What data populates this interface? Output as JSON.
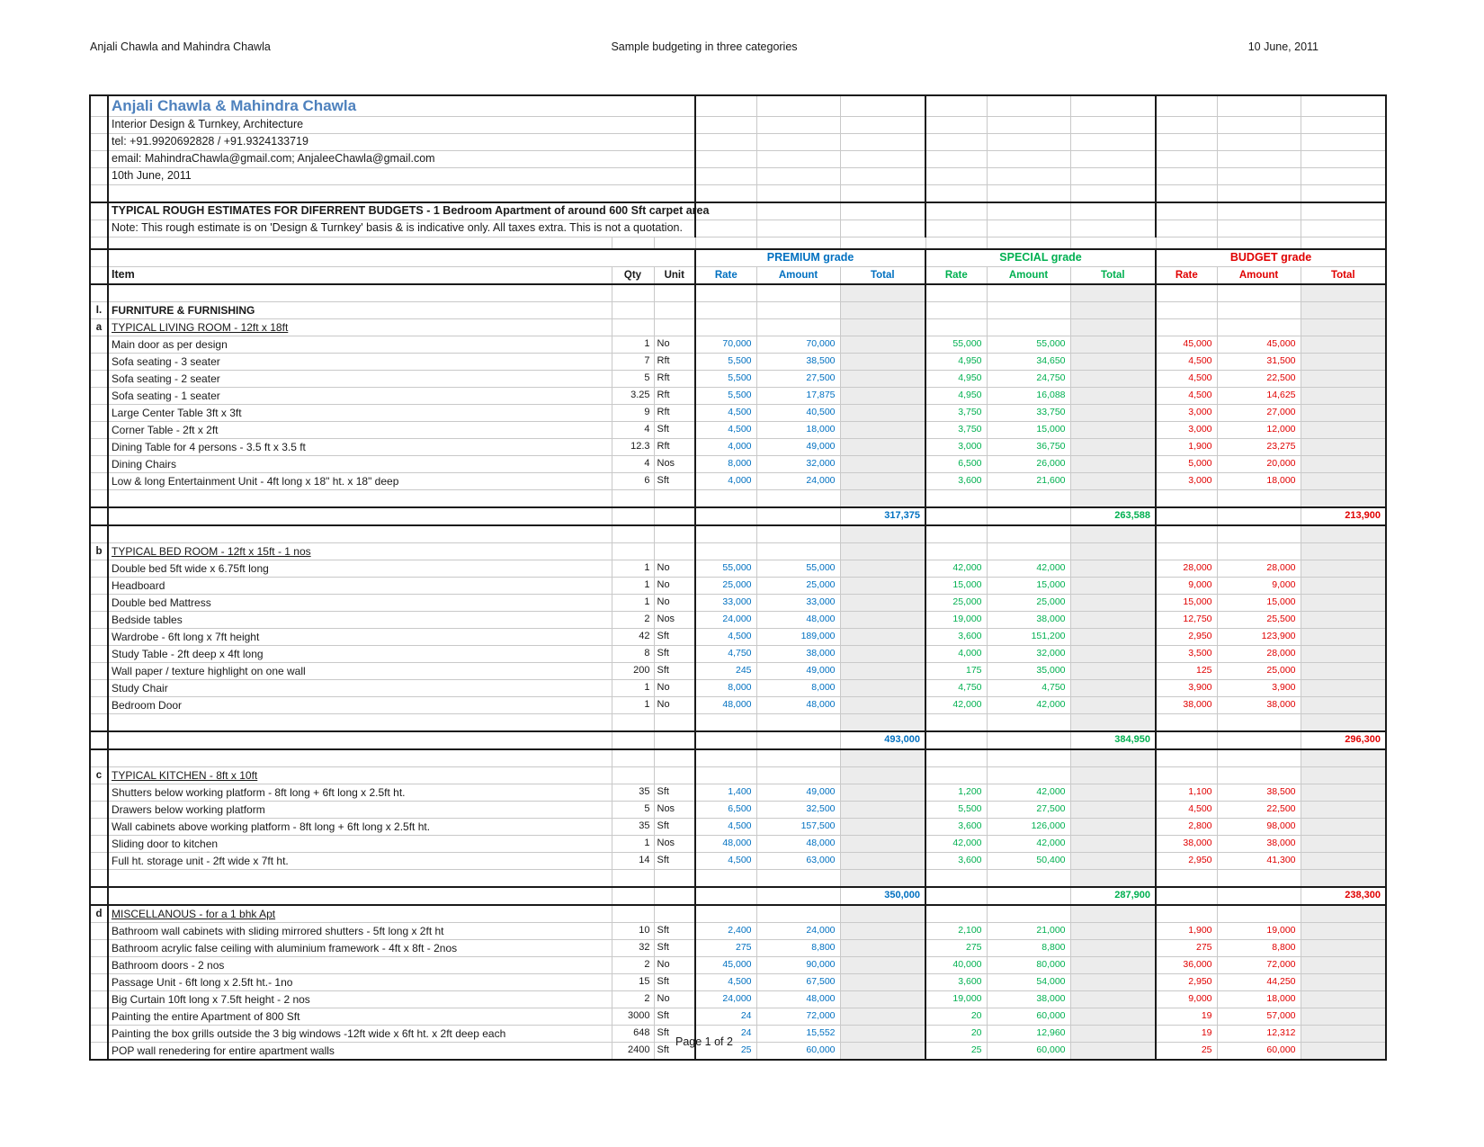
{
  "page": {
    "header_left": "Anjali Chawla and Mahindra Chawla",
    "header_center": "Sample budgeting in three categories",
    "header_right": "10 June, 2011",
    "footer": "Page 1 of 2"
  },
  "company": {
    "name": "Anjali Chawla & Mahindra Chawla",
    "tagline": "Interior Design & Turnkey, Architecture",
    "tel": "tel: +91.9920692828 / +91.9324133719",
    "email": "email: MahindraChawla@gmail.com; AnjaleeChawla@gmail.com",
    "date": "10th June, 2011",
    "estimate_title": "TYPICAL ROUGH  ESTIMATES FOR DIFERRENT BUDGETS - 1 Bedroom Apartment of around 600 Sft carpet area",
    "note": "Note: This rough estimate is on 'Design & Turnkey' basis & is indicative only. All taxes extra. This is not a quotation."
  },
  "colors": {
    "premium": "#0070C0",
    "special": "#00B050",
    "budget": "#E00000",
    "company": "#4E81BD"
  },
  "grades": [
    {
      "key": "p",
      "label": "PREMIUM grade"
    },
    {
      "key": "s",
      "label": "SPECIAL grade"
    },
    {
      "key": "b",
      "label": "BUDGET grade"
    }
  ],
  "columns": {
    "item": "Item",
    "qty": "Qty",
    "unit": "Unit",
    "rate": "Rate",
    "amount": "Amount",
    "total": "Total"
  },
  "group": {
    "id": "I.",
    "title": "FURNITURE & FURNISHING"
  },
  "subsections": [
    {
      "id": "a",
      "title": "TYPICAL LIVING ROOM - 12ft x 18ft",
      "rows": [
        {
          "item": "Main door as per design",
          "qty": "1",
          "unit": "No",
          "p": [
            "70,000",
            "70,000"
          ],
          "s": [
            "55,000",
            "55,000"
          ],
          "b": [
            "45,000",
            "45,000"
          ]
        },
        {
          "item": "Sofa seating - 3 seater",
          "qty": "7",
          "unit": "Rft",
          "p": [
            "5,500",
            "38,500"
          ],
          "s": [
            "4,950",
            "34,650"
          ],
          "b": [
            "4,500",
            "31,500"
          ]
        },
        {
          "item": "Sofa seating - 2 seater",
          "qty": "5",
          "unit": "Rft",
          "p": [
            "5,500",
            "27,500"
          ],
          "s": [
            "4,950",
            "24,750"
          ],
          "b": [
            "4,500",
            "22,500"
          ]
        },
        {
          "item": "Sofa seating - 1 seater",
          "qty": "3.25",
          "unit": "Rft",
          "p": [
            "5,500",
            "17,875"
          ],
          "s": [
            "4,950",
            "16,088"
          ],
          "b": [
            "4,500",
            "14,625"
          ]
        },
        {
          "item": "Large Center Table 3ft x 3ft",
          "qty": "9",
          "unit": "Rft",
          "p": [
            "4,500",
            "40,500"
          ],
          "s": [
            "3,750",
            "33,750"
          ],
          "b": [
            "3,000",
            "27,000"
          ]
        },
        {
          "item": "Corner Table - 2ft x 2ft",
          "qty": "4",
          "unit": "Sft",
          "p": [
            "4,500",
            "18,000"
          ],
          "s": [
            "3,750",
            "15,000"
          ],
          "b": [
            "3,000",
            "12,000"
          ]
        },
        {
          "item": "Dining Table for 4 persons - 3.5 ft x 3.5 ft",
          "qty": "12.3",
          "unit": "Rft",
          "p": [
            "4,000",
            "49,000"
          ],
          "s": [
            "3,000",
            "36,750"
          ],
          "b": [
            "1,900",
            "23,275"
          ]
        },
        {
          "item": "Dining Chairs",
          "qty": "4",
          "unit": "Nos",
          "p": [
            "8,000",
            "32,000"
          ],
          "s": [
            "6,500",
            "26,000"
          ],
          "b": [
            "5,000",
            "20,000"
          ]
        },
        {
          "item": "Low & long Entertainment Unit - 4ft long x 18\" ht. x 18\" deep",
          "qty": "6",
          "unit": "Sft",
          "p": [
            "4,000",
            "24,000"
          ],
          "s": [
            "3,600",
            "21,600"
          ],
          "b": [
            "3,000",
            "18,000"
          ]
        }
      ],
      "totals": {
        "p": "317,375",
        "s": "263,588",
        "b": "213,900"
      },
      "blank_after_total": true
    },
    {
      "id": "b",
      "title": "TYPICAL BED ROOM - 12ft x 15ft - 1 nos",
      "rows": [
        {
          "item": "Double bed 5ft wide x 6.75ft long",
          "qty": "1",
          "unit": "No",
          "p": [
            "55,000",
            "55,000"
          ],
          "s": [
            "42,000",
            "42,000"
          ],
          "b": [
            "28,000",
            "28,000"
          ]
        },
        {
          "item": "Headboard",
          "qty": "1",
          "unit": "No",
          "p": [
            "25,000",
            "25,000"
          ],
          "s": [
            "15,000",
            "15,000"
          ],
          "b": [
            "9,000",
            "9,000"
          ]
        },
        {
          "item": "Double bed Mattress",
          "qty": "1",
          "unit": "No",
          "p": [
            "33,000",
            "33,000"
          ],
          "s": [
            "25,000",
            "25,000"
          ],
          "b": [
            "15,000",
            "15,000"
          ]
        },
        {
          "item": "Bedside tables",
          "qty": "2",
          "unit": "Nos",
          "p": [
            "24,000",
            "48,000"
          ],
          "s": [
            "19,000",
            "38,000"
          ],
          "b": [
            "12,750",
            "25,500"
          ]
        },
        {
          "item": "Wardrobe - 6ft long x 7ft height",
          "qty": "42",
          "unit": "Sft",
          "p": [
            "4,500",
            "189,000"
          ],
          "s": [
            "3,600",
            "151,200"
          ],
          "b": [
            "2,950",
            "123,900"
          ]
        },
        {
          "item": "Study Table - 2ft deep x 4ft long",
          "qty": "8",
          "unit": "Sft",
          "p": [
            "4,750",
            "38,000"
          ],
          "s": [
            "4,000",
            "32,000"
          ],
          "b": [
            "3,500",
            "28,000"
          ]
        },
        {
          "item": "Wall paper / texture highlight on one wall",
          "qty": "200",
          "unit": "Sft",
          "p": [
            "245",
            "49,000"
          ],
          "s": [
            "175",
            "35,000"
          ],
          "b": [
            "125",
            "25,000"
          ]
        },
        {
          "item": "Study Chair",
          "qty": "1",
          "unit": "No",
          "p": [
            "8,000",
            "8,000"
          ],
          "s": [
            "4,750",
            "4,750"
          ],
          "b": [
            "3,900",
            "3,900"
          ]
        },
        {
          "item": "Bedroom Door",
          "qty": "1",
          "unit": "No",
          "p": [
            "48,000",
            "48,000"
          ],
          "s": [
            "42,000",
            "42,000"
          ],
          "b": [
            "38,000",
            "38,000"
          ]
        }
      ],
      "totals": {
        "p": "493,000",
        "s": "384,950",
        "b": "296,300"
      },
      "blank_after_total": true
    },
    {
      "id": "c",
      "title": "TYPICAL KITCHEN - 8ft x 10ft",
      "rows": [
        {
          "item": "Shutters below working platform - 8ft long + 6ft long x 2.5ft ht.",
          "qty": "35",
          "unit": "Sft",
          "p": [
            "1,400",
            "49,000"
          ],
          "s": [
            "1,200",
            "42,000"
          ],
          "b": [
            "1,100",
            "38,500"
          ]
        },
        {
          "item": "Drawers below working platform",
          "qty": "5",
          "unit": "Nos",
          "p": [
            "6,500",
            "32,500"
          ],
          "s": [
            "5,500",
            "27,500"
          ],
          "b": [
            "4,500",
            "22,500"
          ]
        },
        {
          "item": "Wall cabinets above working platform  - 8ft long + 6ft long x 2.5ft ht.",
          "qty": "35",
          "unit": "Sft",
          "p": [
            "4,500",
            "157,500"
          ],
          "s": [
            "3,600",
            "126,000"
          ],
          "b": [
            "2,800",
            "98,000"
          ]
        },
        {
          "item": "Sliding door to kitchen",
          "qty": "1",
          "unit": "Nos",
          "p": [
            "48,000",
            "48,000"
          ],
          "s": [
            "42,000",
            "42,000"
          ],
          "b": [
            "38,000",
            "38,000"
          ]
        },
        {
          "item": "Full ht. storage unit - 2ft wide x 7ft ht.",
          "qty": "14",
          "unit": "Sft",
          "p": [
            "4,500",
            "63,000"
          ],
          "s": [
            "3,600",
            "50,400"
          ],
          "b": [
            "2,950",
            "41,300"
          ]
        }
      ],
      "totals": {
        "p": "350,000",
        "s": "287,900",
        "b": "238,300"
      },
      "blank_after_total": false
    },
    {
      "id": "d",
      "title": "MISCELLANOUS - for a 1 bhk Apt",
      "rows": [
        {
          "item": "Bathroom wall cabinets with sliding mirrored shutters - 5ft long x 2ft ht",
          "qty": "10",
          "unit": "Sft",
          "p": [
            "2,400",
            "24,000"
          ],
          "s": [
            "2,100",
            "21,000"
          ],
          "b": [
            "1,900",
            "19,000"
          ]
        },
        {
          "item": "Bathroom acrylic false ceiling with aluminium  framework - 4ft x 8ft -  2nos",
          "qty": "32",
          "unit": "Sft",
          "p": [
            "275",
            "8,800"
          ],
          "s": [
            "275",
            "8,800"
          ],
          "b": [
            "275",
            "8,800"
          ]
        },
        {
          "item": "Bathroom doors - 2 nos",
          "qty": "2",
          "unit": "No",
          "p": [
            "45,000",
            "90,000"
          ],
          "s": [
            "40,000",
            "80,000"
          ],
          "b": [
            "36,000",
            "72,000"
          ]
        },
        {
          "item": "Passage Unit  - 6ft long x 2.5ft ht.- 1no",
          "qty": "15",
          "unit": "Sft",
          "p": [
            "4,500",
            "67,500"
          ],
          "s": [
            "3,600",
            "54,000"
          ],
          "b": [
            "2,950",
            "44,250"
          ]
        },
        {
          "item": "Big Curtain 10ft long x 7.5ft height - 2 nos",
          "qty": "2",
          "unit": "No",
          "p": [
            "24,000",
            "48,000"
          ],
          "s": [
            "19,000",
            "38,000"
          ],
          "b": [
            "9,000",
            "18,000"
          ]
        },
        {
          "item": "Painting the entire Apartment of 800 Sft",
          "qty": "3000",
          "unit": "Sft",
          "p": [
            "24",
            "72,000"
          ],
          "s": [
            "20",
            "60,000"
          ],
          "b": [
            "19",
            "57,000"
          ]
        },
        {
          "item": "Painting the box grills outside the 3 big windows -12ft wide x 6ft ht. x 2ft deep each",
          "qty": "648",
          "unit": "Sft",
          "p": [
            "24",
            "15,552"
          ],
          "s": [
            "20",
            "12,960"
          ],
          "b": [
            "19",
            "12,312"
          ]
        },
        {
          "item": "POP wall renedering for entire apartment walls",
          "qty": "2400",
          "unit": "Sft",
          "p": [
            "25",
            "60,000"
          ],
          "s": [
            "25",
            "60,000"
          ],
          "b": [
            "25",
            "60,000"
          ]
        }
      ],
      "totals": null,
      "blank_after_total": false
    }
  ]
}
